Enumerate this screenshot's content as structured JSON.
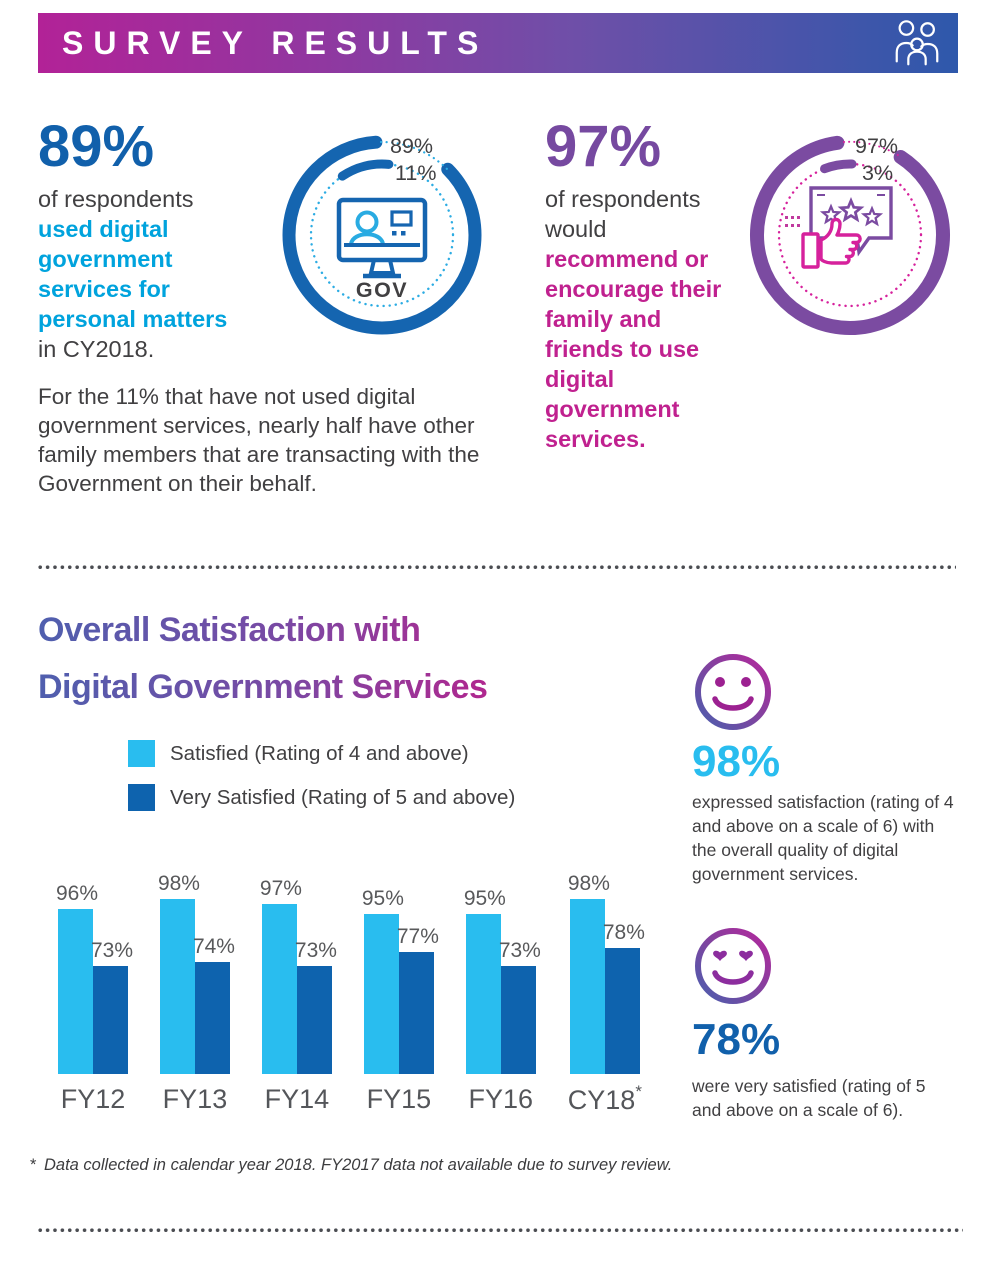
{
  "header": {
    "title": "SURVEY RESULTS"
  },
  "stat_used": {
    "value": "89%",
    "lines": [
      "of respondents",
      "used digital",
      "government",
      "services for",
      "personal matters",
      "in CY2018."
    ],
    "donut": {
      "labels": [
        "89%",
        "11%"
      ],
      "icon_caption": "GOV"
    }
  },
  "stat_recommend": {
    "value": "97%",
    "lines": [
      "of respondents",
      "would",
      "recommend or",
      "encourage their",
      "family and",
      "friends to use",
      "digital",
      "government",
      "services."
    ],
    "donut": {
      "labels": [
        "97%",
        "3%"
      ]
    }
  },
  "paragraph": "For the 11% that have not used digital government services,  nearly half have other family members that are transacting with the Government on their behalf.",
  "satisfaction": {
    "title_line1": "Overall Satisfaction with",
    "title_line2": "Digital Government Services",
    "chart_data": {
      "type": "bar",
      "categories": [
        "FY12",
        "FY13",
        "FY14",
        "FY15",
        "FY16",
        "CY18"
      ],
      "series": [
        {
          "name": "Satisfied (Rating of 4 and above)",
          "color": "#29bdef",
          "values": [
            96,
            98,
            97,
            95,
            95,
            98
          ]
        },
        {
          "name": "Very Satisfied (Rating of 5 and above)",
          "color": "#0e63ae",
          "values": [
            73,
            74,
            73,
            77,
            73,
            78
          ]
        }
      ],
      "value_suffix": "%",
      "footnote_category": "CY18",
      "ylim": [
        0,
        100
      ],
      "grid": "off",
      "legend_position": "top-left"
    },
    "callouts": [
      {
        "value": "98%",
        "text": "expressed satisfaction (rating of 4 and above on a scale of 6) with the overall quality of digital government services.",
        "color": "#29bdef",
        "icon": "smiley-face"
      },
      {
        "value": "78%",
        "text": "were very satisfied (rating of 5 and above on a scale of 6).",
        "color": "#1160ab",
        "icon": "smiley-heart-eyes"
      }
    ]
  },
  "footnote_marker": "*",
  "footnote": "Data collected in calendar year 2018. FY2017 data not available due to survey review.",
  "colors": {
    "banner_gradient_start": "#b22297",
    "banner_gradient_end": "#2e58ab",
    "dark_blue": "#1160ab",
    "cyan": "#29bdef",
    "cyan_text": "#00a3dd",
    "purple": "#7b4ba1",
    "magenta": "#c0218f",
    "pink_dotted": "#d6219c",
    "text_gray": "#414042"
  }
}
